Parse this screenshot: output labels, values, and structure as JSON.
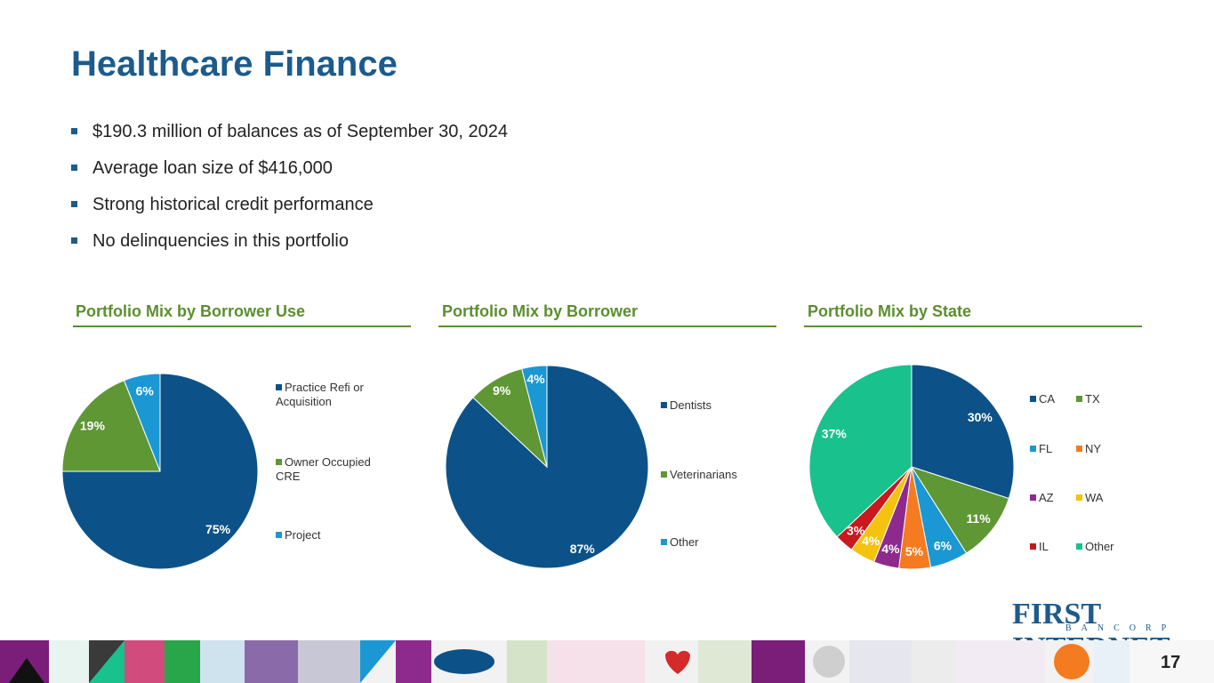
{
  "title": "Healthcare Finance",
  "bullets": [
    "$190.3 million of balances as of September 30, 2024",
    "Average loan size of $416,000",
    "Strong historical credit performance",
    "No delinquencies in this portfolio"
  ],
  "sections": [
    {
      "title": "Portfolio Mix by Borrower Use"
    },
    {
      "title": "Portfolio Mix by Borrower"
    },
    {
      "title": "Portfolio Mix by State"
    }
  ],
  "logo": {
    "main": "FIRST INTERNET",
    "sub": "BANCORP"
  },
  "page_number": "17",
  "colors": {
    "navy": "#1c5b8c",
    "green": "#5b8f2e",
    "accent_green": "#6a9a3a"
  },
  "chart_data": [
    {
      "type": "pie",
      "title": "Portfolio Mix by Borrower Use",
      "legend_position": "right",
      "categories": [
        "Practice Refi or Acquisition",
        "Owner Occupied CRE",
        "Project"
      ],
      "values": [
        75,
        19,
        6
      ],
      "labels": [
        "75%",
        "19%",
        "6%"
      ],
      "colors": [
        "#0c5288",
        "#5e9734",
        "#1b97d4"
      ]
    },
    {
      "type": "pie",
      "title": "Portfolio Mix by Borrower",
      "legend_position": "right",
      "categories": [
        "Dentists",
        "Veterinarians",
        "Other"
      ],
      "values": [
        87,
        9,
        4
      ],
      "labels": [
        "87%",
        "9%",
        "4%"
      ],
      "colors": [
        "#0c5288",
        "#5e9734",
        "#1b97d4"
      ]
    },
    {
      "type": "pie",
      "title": "Portfolio Mix by State",
      "legend_position": "right",
      "categories": [
        "CA",
        "TX",
        "FL",
        "NY",
        "AZ",
        "WA",
        "IL",
        "Other"
      ],
      "values": [
        30,
        11,
        6,
        5,
        4,
        4,
        3,
        37
      ],
      "labels": [
        "30%",
        "11%",
        "6%",
        "5%",
        "4%",
        "4%",
        "3%",
        "37%"
      ],
      "colors": [
        "#0c5288",
        "#5e9734",
        "#1b97d4",
        "#f47b20",
        "#8e2a8e",
        "#f5c20f",
        "#c8191e",
        "#19c18c"
      ]
    }
  ]
}
